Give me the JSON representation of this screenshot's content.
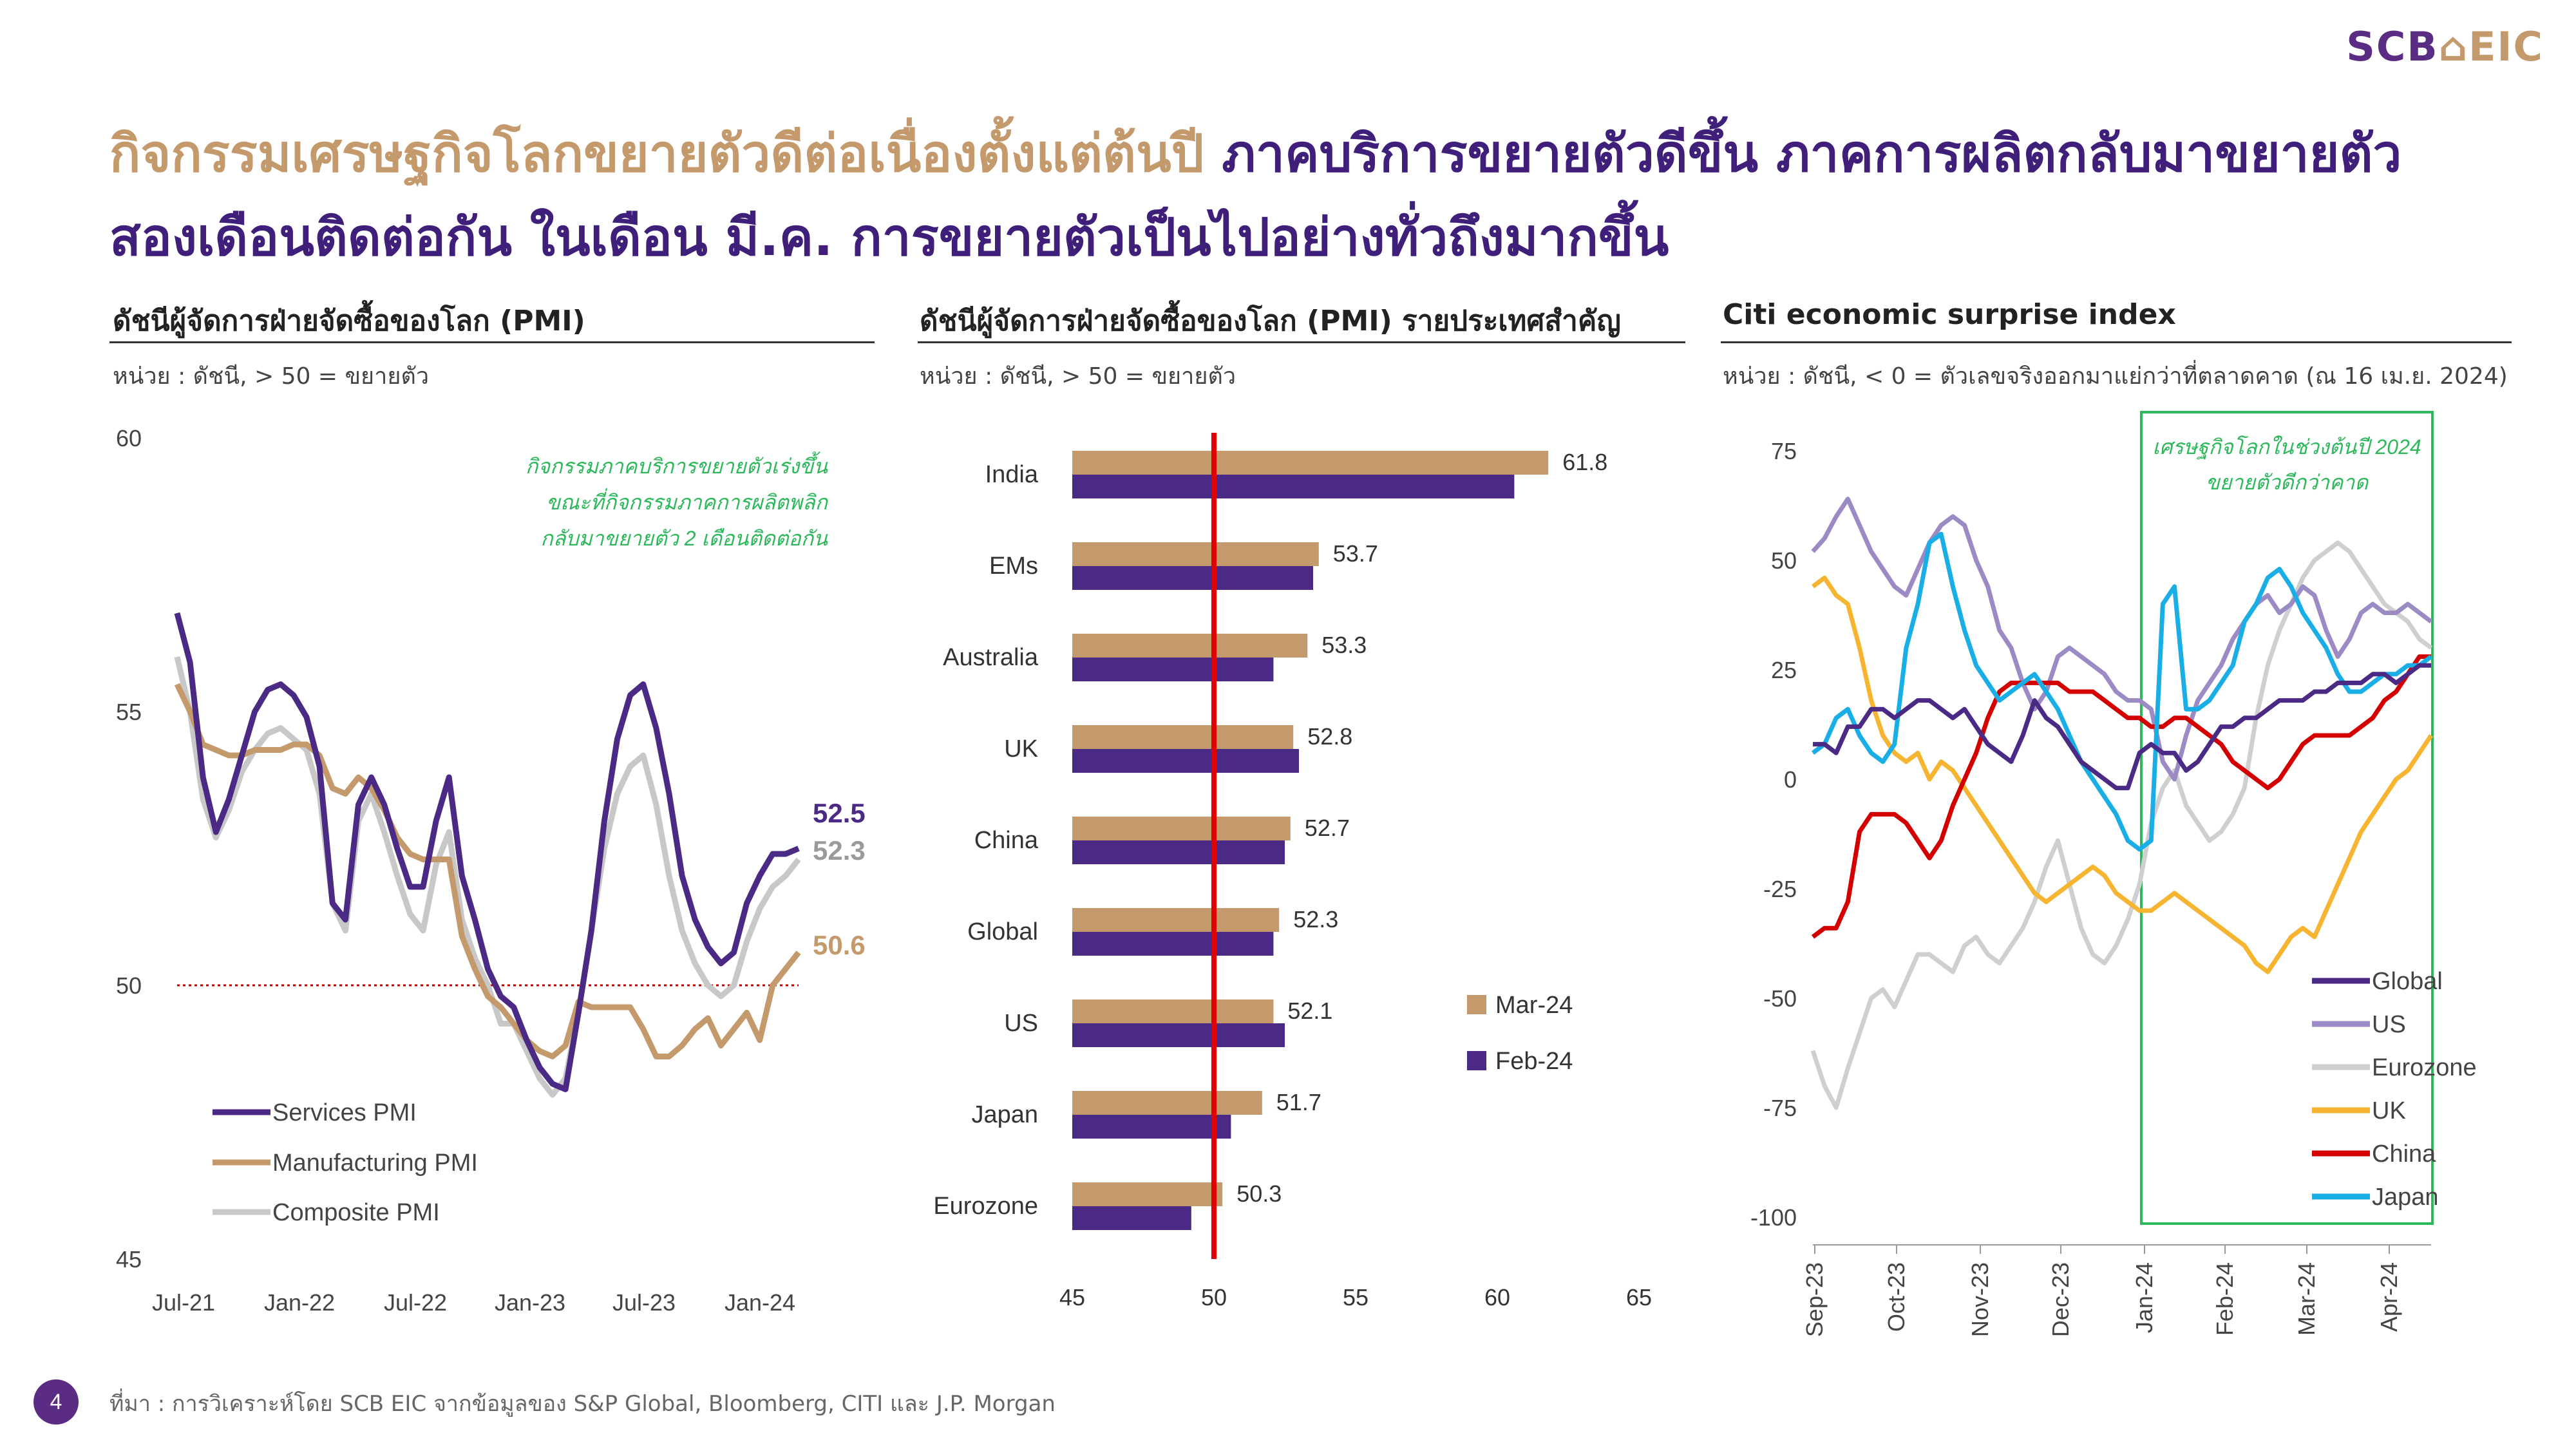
{
  "logo": {
    "scb": "SCB",
    "eic": "EIC"
  },
  "headline": {
    "line1_gold": "กิจกรรมเศรษฐกิจโลกขยายตัวดีต่อเนื่องตั้งแต่ต้นปี",
    "line1_purple": "ภาคบริการขยายตัวดีขึ้น ภาคการผลิตกลับมาขยายตัว",
    "line2": "สองเดือนติดต่อกัน ในเดือน มี.ค. การขยายตัวเป็นไปอย่างทั่วถึงมากขึ้น"
  },
  "panels": {
    "left": {
      "title": "ดัชนีผู้จัดการฝ่ายจัดซื้อของโลก (PMI)",
      "unit": "หน่วย : ดัชนี, > 50 = ขยายตัว"
    },
    "middle": {
      "title": "ดัชนีผู้จัดการฝ่ายจัดซื้อของโลก (PMI) รายประเทศสำคัญ",
      "unit": "หน่วย : ดัชนี, > 50 = ขยายตัว"
    },
    "right": {
      "title": "Citi economic surprise index",
      "unit": "หน่วย : ดัชนี, < 0 = ตัวเลขจริงออกมาแย่กว่าที่ตลาดคาด (ณ 16 เม.ย. 2024)"
    }
  },
  "footer": {
    "page": "4",
    "source": "ที่มา : การวิเคราะห์โดย SCB EIC จากข้อมูลของ S&P Global, Bloomberg, CITI และ J.P. Morgan"
  },
  "chart_data": [
    {
      "type": "line",
      "x_tick_labels": [
        "Jul-21",
        "Jan-22",
        "Jul-22",
        "Jan-23",
        "Jul-23",
        "Jan-24"
      ],
      "y_ticks": [
        45,
        50,
        55,
        60
      ],
      "ylim": [
        45,
        60
      ],
      "reference_line": 50,
      "annotation": [
        "กิจกรรมภาคบริการขยายตัวเร่งขึ้น",
        "ขณะที่กิจกรรมภาคการผลิตพลิก",
        "กลับมาขยายตัว 2 เดือนติดต่อกัน"
      ],
      "colors": {
        "services": "#4b2a86",
        "manufacturing": "#c49a6c",
        "composite": "#c8c8c8",
        "annotation": "#2eb85c",
        "reference": "#c00000"
      },
      "series": [
        {
          "name": "Services PMI",
          "end_label": "52.5",
          "values": [
            56.8,
            55.9,
            53.8,
            52.8,
            53.4,
            54.2,
            55.0,
            55.4,
            55.5,
            55.3,
            54.9,
            54.0,
            51.5,
            51.2,
            53.3,
            53.8,
            53.3,
            52.5,
            51.8,
            51.8,
            53.0,
            53.8,
            52.0,
            51.2,
            50.3,
            49.8,
            49.6,
            49.0,
            48.5,
            48.2,
            48.1,
            49.5,
            51.0,
            53.0,
            54.5,
            55.3,
            55.5,
            54.7,
            53.5,
            52.0,
            51.2,
            50.7,
            50.4,
            50.6,
            51.5,
            52.0,
            52.4,
            52.4,
            52.5
          ]
        },
        {
          "name": "Manufacturing PMI",
          "end_label": "50.6",
          "values": [
            55.5,
            55.0,
            54.4,
            54.3,
            54.2,
            54.2,
            54.3,
            54.3,
            54.3,
            54.4,
            54.4,
            54.2,
            53.6,
            53.5,
            53.8,
            53.6,
            53.2,
            52.7,
            52.4,
            52.3,
            52.3,
            52.3,
            50.9,
            50.3,
            49.8,
            49.6,
            49.3,
            49.0,
            48.8,
            48.7,
            48.9,
            49.7,
            49.6,
            49.6,
            49.6,
            49.6,
            49.2,
            48.7,
            48.7,
            48.9,
            49.2,
            49.4,
            48.9,
            49.2,
            49.5,
            49.0,
            50.0,
            50.3,
            50.6
          ]
        },
        {
          "name": "Composite PMI",
          "end_label": "52.3",
          "values": [
            56.0,
            55.0,
            53.4,
            52.7,
            53.2,
            53.9,
            54.3,
            54.6,
            54.7,
            54.5,
            54.3,
            53.5,
            51.5,
            51.0,
            53.0,
            53.5,
            52.8,
            52.0,
            51.3,
            51.0,
            52.2,
            52.8,
            51.2,
            50.5,
            50.0,
            49.3,
            49.3,
            48.8,
            48.3,
            48.0,
            48.3,
            49.5,
            51.0,
            52.5,
            53.5,
            54.0,
            54.2,
            53.3,
            52.0,
            51.0,
            50.4,
            50.0,
            49.8,
            50.0,
            50.8,
            51.4,
            51.8,
            52.0,
            52.3
          ]
        }
      ]
    },
    {
      "type": "bar",
      "orientation": "horizontal",
      "categories": [
        "India",
        "EMs",
        "Australia",
        "UK",
        "China",
        "Global",
        "US",
        "Japan",
        "Eurozone"
      ],
      "xlim": [
        45,
        65
      ],
      "x_ticks": [
        45,
        50,
        55,
        60,
        65
      ],
      "reference_line": 50,
      "series": [
        {
          "name": "Mar-24",
          "color": "#c49a6c",
          "values": [
            61.8,
            53.7,
            53.3,
            52.8,
            52.7,
            52.3,
            52.1,
            51.7,
            50.3
          ]
        },
        {
          "name": "Feb-24",
          "color": "#4b2a86",
          "values": [
            60.6,
            53.5,
            52.1,
            53.0,
            52.5,
            52.1,
            52.5,
            50.6,
            49.2
          ]
        }
      ],
      "value_labels": [
        "61.8",
        "53.7",
        "53.3",
        "52.8",
        "52.7",
        "52.3",
        "52.1",
        "51.7",
        "50.3"
      ]
    },
    {
      "type": "line",
      "x_tick_labels": [
        "Sep-23",
        "Oct-23",
        "Nov-23",
        "Dec-23",
        "Jan-24",
        "Feb-24",
        "Mar-24",
        "Apr-24"
      ],
      "y_ticks": [
        75,
        50,
        25,
        0,
        -25,
        -50,
        -75,
        -100
      ],
      "ylim": [
        -100,
        75
      ],
      "annotation": [
        "เศรษฐกิจโลกในช่วงต้นปี 2024",
        "ขยายตัวดีกว่าคาด"
      ],
      "highlight_box_color": "#2eb85c",
      "series": [
        {
          "name": "Global",
          "color": "#4b2a86",
          "values": [
            8,
            8,
            6,
            12,
            12,
            16,
            16,
            14,
            16,
            18,
            18,
            16,
            14,
            16,
            12,
            8,
            6,
            4,
            10,
            18,
            14,
            12,
            8,
            4,
            2,
            0,
            -2,
            -2,
            6,
            8,
            6,
            6,
            2,
            4,
            8,
            12,
            12,
            14,
            14,
            16,
            18,
            18,
            18,
            20,
            20,
            22,
            22,
            22,
            24,
            24,
            22,
            24,
            26,
            26
          ]
        },
        {
          "name": "US",
          "color": "#9b8ac4",
          "values": [
            52,
            55,
            60,
            64,
            58,
            52,
            48,
            44,
            42,
            48,
            54,
            58,
            60,
            58,
            50,
            44,
            34,
            30,
            22,
            16,
            20,
            28,
            30,
            28,
            26,
            24,
            20,
            18,
            18,
            16,
            4,
            0,
            10,
            18,
            22,
            26,
            32,
            36,
            40,
            42,
            38,
            40,
            44,
            42,
            34,
            28,
            32,
            38,
            40,
            38,
            38,
            40,
            38,
            36
          ]
        },
        {
          "name": "Eurozone",
          "color": "#cfcfcf",
          "values": [
            -62,
            -70,
            -75,
            -66,
            -58,
            -50,
            -48,
            -52,
            -46,
            -40,
            -40,
            -42,
            -44,
            -38,
            -36,
            -40,
            -42,
            -38,
            -34,
            -28,
            -20,
            -14,
            -24,
            -34,
            -40,
            -42,
            -38,
            -32,
            -24,
            -10,
            -2,
            2,
            -6,
            -10,
            -14,
            -12,
            -8,
            -2,
            14,
            26,
            34,
            40,
            46,
            50,
            52,
            54,
            52,
            48,
            44,
            40,
            38,
            36,
            32,
            30
          ]
        },
        {
          "name": "UK",
          "color": "#f6b431",
          "values": [
            44,
            46,
            42,
            40,
            30,
            18,
            10,
            6,
            4,
            6,
            0,
            4,
            2,
            -2,
            -6,
            -10,
            -14,
            -18,
            -22,
            -26,
            -28,
            -26,
            -24,
            -22,
            -20,
            -22,
            -26,
            -28,
            -30,
            -30,
            -28,
            -26,
            -28,
            -30,
            -32,
            -34,
            -36,
            -38,
            -42,
            -44,
            -40,
            -36,
            -34,
            -36,
            -30,
            -24,
            -18,
            -12,
            -8,
            -4,
            0,
            2,
            6,
            10
          ]
        },
        {
          "name": "China",
          "color": "#d40000",
          "values": [
            -36,
            -34,
            -34,
            -28,
            -12,
            -8,
            -8,
            -8,
            -10,
            -14,
            -18,
            -14,
            -6,
            0,
            6,
            14,
            20,
            22,
            22,
            22,
            22,
            22,
            20,
            20,
            20,
            18,
            16,
            14,
            14,
            12,
            12,
            14,
            14,
            12,
            10,
            8,
            4,
            2,
            0,
            -2,
            0,
            4,
            8,
            10,
            10,
            10,
            10,
            12,
            14,
            18,
            20,
            24,
            28,
            28
          ]
        },
        {
          "name": "Japan",
          "color": "#1aaee6",
          "values": [
            6,
            8,
            14,
            16,
            10,
            6,
            4,
            8,
            30,
            40,
            54,
            56,
            44,
            34,
            26,
            22,
            18,
            20,
            22,
            24,
            20,
            16,
            10,
            4,
            0,
            -4,
            -8,
            -14,
            -16,
            -14,
            40,
            44,
            16,
            16,
            18,
            22,
            26,
            36,
            40,
            46,
            48,
            44,
            38,
            34,
            30,
            24,
            20,
            20,
            22,
            24,
            24,
            26,
            26,
            28
          ]
        }
      ]
    }
  ]
}
